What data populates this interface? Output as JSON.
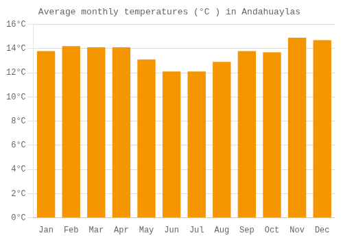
{
  "chart_data": {
    "type": "bar",
    "title": "Average monthly temperatures (°C ) in Andahuaylas",
    "categories": [
      "Jan",
      "Feb",
      "Mar",
      "Apr",
      "May",
      "Jun",
      "Jul",
      "Aug",
      "Sep",
      "Oct",
      "Nov",
      "Dec"
    ],
    "values": [
      13.8,
      14.2,
      14.1,
      14.1,
      13.1,
      12.1,
      12.1,
      12.9,
      13.8,
      13.7,
      14.9,
      14.7
    ],
    "color": "#F59500",
    "ylim": [
      0,
      16
    ],
    "yticks": [
      {
        "value": 0,
        "label": "0°C"
      },
      {
        "value": 2,
        "label": "2°C"
      },
      {
        "value": 4,
        "label": "4°C"
      },
      {
        "value": 6,
        "label": "6°C"
      },
      {
        "value": 8,
        "label": "8°C"
      },
      {
        "value": 10,
        "label": "10°C"
      },
      {
        "value": 12,
        "label": "12°C"
      },
      {
        "value": 14,
        "label": "14°C"
      },
      {
        "value": 16,
        "label": "16°C"
      }
    ],
    "grid": true
  }
}
